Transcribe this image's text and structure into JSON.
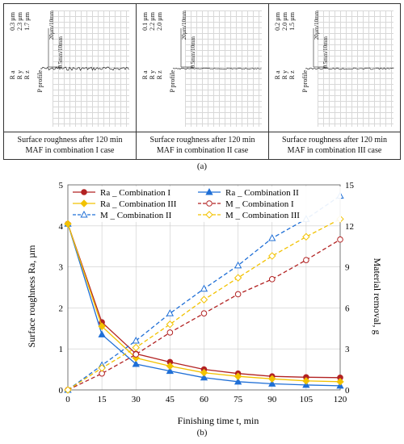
{
  "panels": [
    {
      "values": [
        "0.3 µm",
        "2.3 µm",
        "1.7 µm"
      ],
      "labels": [
        "R a",
        "R y",
        "R z"
      ],
      "profile_label": "P profile",
      "scale_v": "20µm/10mm",
      "scale_h": "0.5mm/10mm",
      "caption": [
        "Surface roughness after 120 min",
        "MAF in combination I case"
      ]
    },
    {
      "values": [
        "0.1 µm",
        "2.2 µm",
        "2.0 µm"
      ],
      "labels": [
        "R a",
        "R y",
        "R z"
      ],
      "profile_label": "P profile",
      "scale_v": "20µm/10mm",
      "scale_h": "0.5mm/10mm",
      "caption": [
        "Surface roughness after 120 min",
        "MAF in combination II case"
      ]
    },
    {
      "values": [
        "0.2 µm",
        "2.0 µm",
        "1.5 µm"
      ],
      "labels": [
        "R a",
        "R y",
        "R z"
      ],
      "profile_label": "P profile",
      "scale_v": "20µm/10mm",
      "scale_h": "0.5mm/10mm",
      "caption": [
        "Surface roughness after 120 min",
        "MAF in combination III case"
      ]
    }
  ],
  "label_a": "(a)",
  "label_b": "(b)",
  "chart_data": {
    "type": "line",
    "x": [
      0,
      15,
      30,
      45,
      60,
      75,
      90,
      105,
      120
    ],
    "xlabel": "Finishing time t, min",
    "ylabel_left": "Surface roughness Ra, µm",
    "ylabel_right": "Material removal, g",
    "xlim": [
      0,
      120
    ],
    "ylim_left": [
      0,
      5
    ],
    "ylim_right": [
      0,
      15
    ],
    "xticks": [
      "0",
      "15",
      "30",
      "45",
      "60",
      "75",
      "90",
      "105",
      "120"
    ],
    "yticks_left": [
      "0",
      "1",
      "2",
      "3",
      "4",
      "5"
    ],
    "yticks_right": [
      "0",
      "3",
      "6",
      "9",
      "12",
      "15"
    ],
    "legend_placement": "top",
    "series": [
      {
        "name": "Ra _ Combination I",
        "axis": "left",
        "color": "#b22222",
        "marker": "circle",
        "dash": false,
        "values": [
          4.05,
          1.65,
          0.88,
          0.68,
          0.5,
          0.4,
          0.33,
          0.31,
          0.3
        ]
      },
      {
        "name": "Ra _ Combination II",
        "axis": "left",
        "color": "#1f6fd6",
        "marker": "triangle",
        "dash": false,
        "values": [
          4.05,
          1.35,
          0.63,
          0.46,
          0.3,
          0.2,
          0.15,
          0.12,
          0.1
        ]
      },
      {
        "name": "Ra _ Combination III",
        "axis": "left",
        "color": "#f2c200",
        "marker": "diamond",
        "dash": false,
        "values": [
          4.05,
          1.55,
          0.78,
          0.58,
          0.42,
          0.33,
          0.27,
          0.22,
          0.2
        ]
      },
      {
        "name": "M _ Combination I",
        "axis": "right",
        "color": "#b22222",
        "marker": "circle-open",
        "dash": true,
        "values": [
          0,
          1.2,
          2.6,
          4.2,
          5.6,
          7.0,
          8.1,
          9.5,
          11.0
        ]
      },
      {
        "name": "M _ Combination II",
        "axis": "right",
        "color": "#1f6fd6",
        "marker": "triangle-open",
        "dash": true,
        "values": [
          0,
          1.8,
          3.6,
          5.6,
          7.4,
          9.1,
          11.1,
          12.5,
          14.2
        ]
      },
      {
        "name": "M _ Combination III",
        "axis": "right",
        "color": "#f2c200",
        "marker": "diamond-open",
        "dash": true,
        "values": [
          0,
          1.6,
          3.1,
          4.8,
          6.6,
          8.2,
          9.8,
          11.2,
          12.5
        ]
      }
    ]
  }
}
